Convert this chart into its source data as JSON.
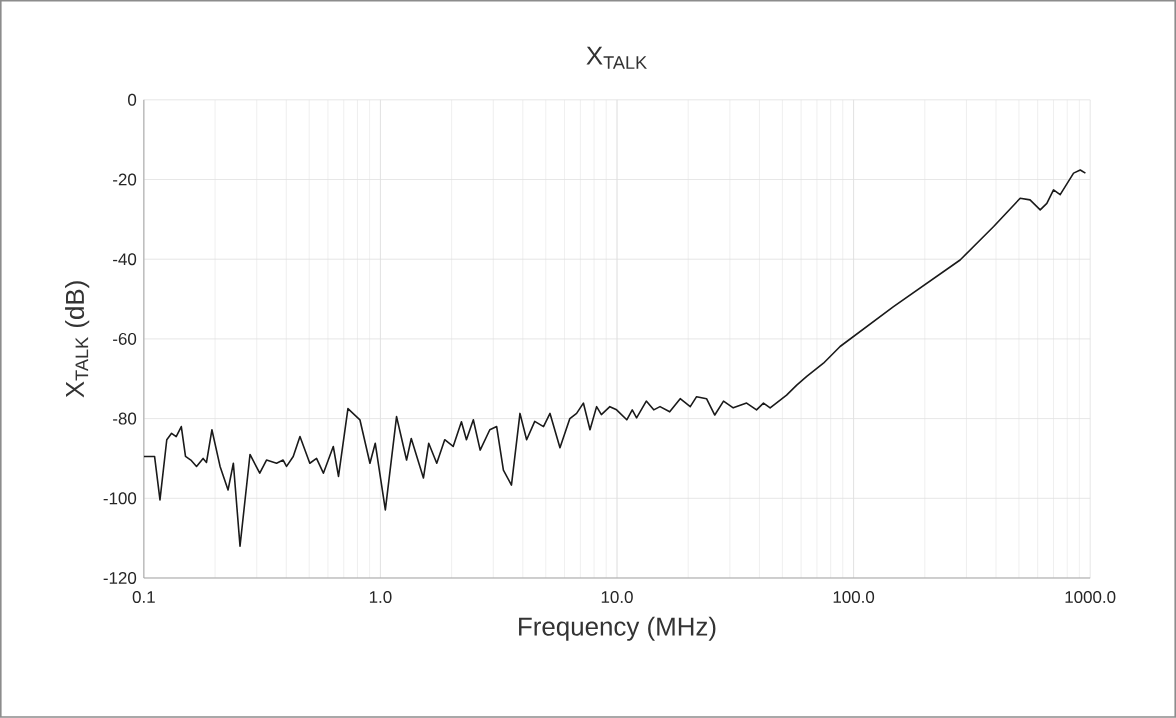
{
  "chart_data": {
    "type": "line",
    "title": "X$_{TALK}$",
    "xlabel": "Frequency (MHz)",
    "ylabel": "X$_{TALK}$ (dB)",
    "log": "x",
    "grid": true,
    "xlim": [
      0.1,
      1000
    ],
    "ylim": [
      -120,
      0
    ],
    "xticks": [
      {
        "value": 0.1,
        "label": "0.1"
      },
      {
        "value": 1,
        "label": "1.0"
      },
      {
        "value": 10,
        "label": "10.0"
      },
      {
        "value": 100,
        "label": "100.0"
      },
      {
        "value": 1000,
        "label": "1000.0"
      }
    ],
    "yticks": [
      -120,
      -100,
      -80,
      -60,
      -40,
      -20,
      0
    ],
    "series": [
      {
        "color": "#1a1a1a",
        "x": [
          0.1,
          0.106,
          0.111,
          0.117,
          0.125,
          0.131,
          0.137,
          0.144,
          0.15,
          0.158,
          0.167,
          0.178,
          0.184,
          0.194,
          0.21,
          0.227,
          0.239,
          0.255,
          0.281,
          0.309,
          0.33,
          0.364,
          0.388,
          0.401,
          0.428,
          0.457,
          0.503,
          0.537,
          0.574,
          0.632,
          0.665,
          0.729,
          0.819,
          0.903,
          0.951,
          1.049,
          1.17,
          1.29,
          1.35,
          1.52,
          1.6,
          1.73,
          1.87,
          2.03,
          2.2,
          2.31,
          2.47,
          2.64,
          2.9,
          3.1,
          3.31,
          3.58,
          3.89,
          4.15,
          4.49,
          4.89,
          5.21,
          5.74,
          6.32,
          6.75,
          7.21,
          7.69,
          8.2,
          8.59,
          9.33,
          9.96,
          11.0,
          11.6,
          12.1,
          13.3,
          14.3,
          15.2,
          16.7,
          18.5,
          20.4,
          21.7,
          23.9,
          25.9,
          28.2,
          31.0,
          35.3,
          38.9,
          41.6,
          44.4,
          52.1,
          57.5,
          63.4,
          74.6,
          87.7,
          147.5,
          282,
          391,
          506,
          557,
          615,
          656,
          700,
          747,
          851,
          908,
          955
        ],
        "values": [
          -89.5,
          -89.5,
          -89.5,
          -100.4,
          -85.3,
          -83.7,
          -84.5,
          -82,
          -89.5,
          -90.4,
          -92,
          -90,
          -91,
          -82.8,
          -92,
          -97.9,
          -91.2,
          -112,
          -89,
          -93.7,
          -90.4,
          -91.2,
          -90.4,
          -92,
          -89.5,
          -84.5,
          -91.2,
          -90,
          -93.7,
          -87,
          -94.5,
          -77.5,
          -80.3,
          -91.2,
          -86.2,
          -102.9,
          -79.5,
          -90.4,
          -85,
          -94.9,
          -86.2,
          -91.2,
          -85.3,
          -87,
          -80.8,
          -85.3,
          -80.3,
          -87.9,
          -82.8,
          -82,
          -92.9,
          -96.7,
          -78.7,
          -85.3,
          -80.7,
          -82,
          -78.7,
          -87.3,
          -80,
          -78.7,
          -76.1,
          -82.8,
          -77,
          -79,
          -77,
          -77.8,
          -80.3,
          -77.8,
          -79.8,
          -75.6,
          -77.8,
          -77,
          -78.3,
          -75,
          -77,
          -74.5,
          -75,
          -79.1,
          -75.6,
          -77.3,
          -76.1,
          -77.8,
          -76.1,
          -77.3,
          -74.1,
          -71.6,
          -69.4,
          -66.1,
          -61.9,
          -51.9,
          -40.2,
          -31.8,
          -24.7,
          -25.1,
          -27.6,
          -26,
          -22.6,
          -23.8,
          -18.4,
          -17.6,
          -18.4
        ]
      }
    ]
  }
}
